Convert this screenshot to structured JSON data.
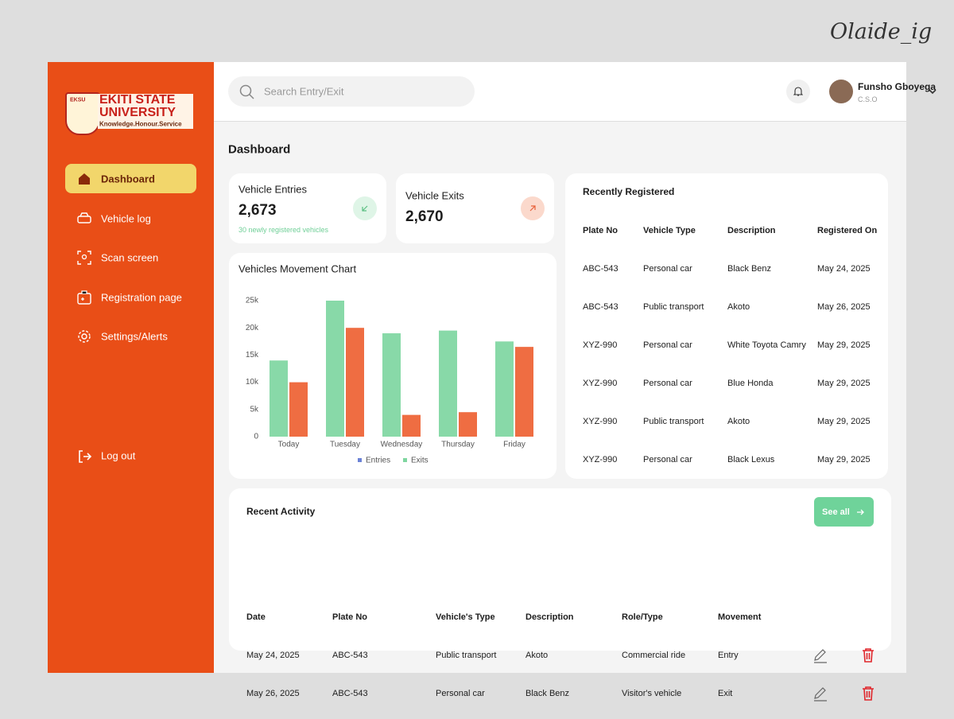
{
  "watermark": "Olaide_ig",
  "sidebar": {
    "logo": {
      "badge": "EKSU",
      "line1": "EKITI STATE",
      "line2": "UNIVERSITY",
      "motto": "Knowledge.Honour.Service"
    },
    "nav": [
      "Dashboard",
      "Vehicle log",
      "Scan screen",
      "Registration page",
      "Settings/Alerts"
    ],
    "logout": "Log out"
  },
  "header": {
    "search_placeholder": "Search Entry/Exit",
    "user": {
      "name": "Funsho Gboyega",
      "role": "C.S.O"
    }
  },
  "page_title": "Dashboard",
  "stats": [
    {
      "label": "Vehicle Entries",
      "value": "2,673",
      "note": "30 newly registered vehicles"
    },
    {
      "label": "Vehicle Exits",
      "value": "2,670"
    }
  ],
  "chart_data": {
    "type": "bar",
    "title": "Vehicles Movement Chart",
    "categories": [
      "Today",
      "Tuesday",
      "Wednesday",
      "Thursday",
      "Friday"
    ],
    "series": [
      {
        "name": "Entries",
        "color": "#88d9a8",
        "legend_color": "#6b82d6",
        "values": [
          14000,
          25000,
          19000,
          19500,
          17500
        ]
      },
      {
        "name": "Exits",
        "color": "#ef6d42",
        "legend_color": "#7fd6a0",
        "values": [
          10000,
          20000,
          4000,
          4500,
          16500
        ]
      }
    ],
    "ylim": [
      0,
      25000
    ],
    "yticks": [
      0,
      {
        "value": 5000,
        "label": "5k"
      },
      {
        "value": 10000,
        "label": "10k"
      },
      {
        "value": 15000,
        "label": "15k"
      },
      {
        "value": 20000,
        "label": "20k"
      },
      {
        "value": 25000,
        "label": "25k"
      }
    ],
    "grid": false
  },
  "recently_registered": {
    "title": "Recently Registered",
    "columns": [
      "Plate No",
      "Vehicle Type",
      "Description",
      "Registered On"
    ],
    "rows": [
      [
        "ABC-543",
        "Personal car",
        "Black Benz",
        "May 24, 2025"
      ],
      [
        "ABC-543",
        "Public transport",
        "Akoto",
        "May 26, 2025"
      ],
      [
        "XYZ-990",
        "Personal car",
        "White Toyota Camry",
        "May 29, 2025"
      ],
      [
        "XYZ-990",
        "Personal car",
        "Blue Honda",
        "May 29, 2025"
      ],
      [
        "XYZ-990",
        "Public transport",
        "Akoto",
        "May 29, 2025"
      ],
      [
        "XYZ-990",
        "Personal car",
        "Black Lexus",
        "May 29, 2025"
      ]
    ]
  },
  "recent_activity": {
    "title": "Recent Activity",
    "button": "See all",
    "columns": [
      "Date",
      "Plate No",
      "Vehicle's Type",
      "Description",
      "Role/Type",
      "Movement"
    ],
    "rows": [
      [
        "May 24, 2025",
        "ABC-543",
        "Public transport",
        "Akoto",
        "Commercial ride",
        "Entry"
      ],
      [
        "May 26, 2025",
        "ABC-543",
        "Personal car",
        "Black Benz",
        "Visitor's vehicle",
        "Exit"
      ]
    ]
  }
}
